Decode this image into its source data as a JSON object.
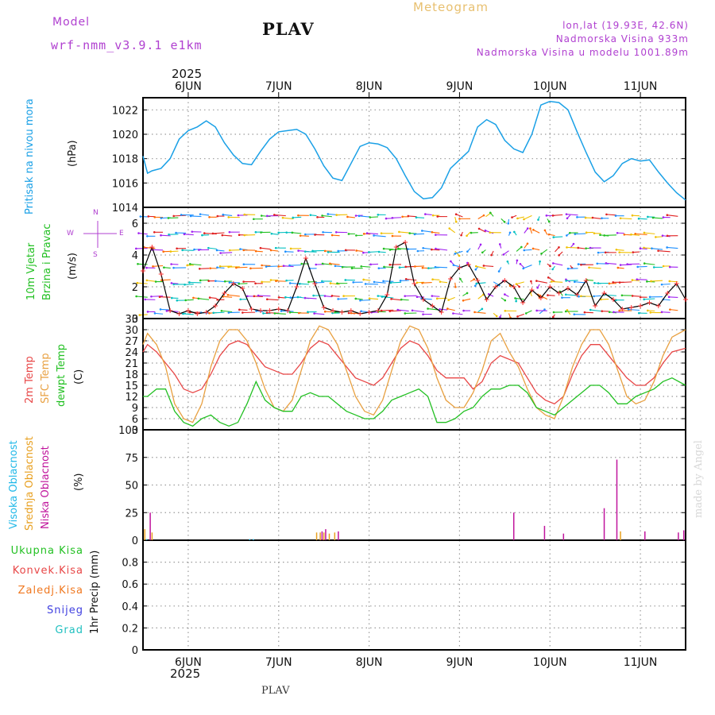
{
  "header": {
    "model_label": "Model",
    "model_name": "wrf-nmm_v3.9.1 e1km",
    "station": "PLAV",
    "product": "Meteogram",
    "lonlat": "lon,lat (19.93E, 42.6N)",
    "elevation": "Nadmorska Visina 933m",
    "model_elevation": "Nadmorska Visina u modelu 1001.89m",
    "year": "2025",
    "footer_station": "PLAV",
    "credit": "made by Angel"
  },
  "colors": {
    "pressure": "#1aa0e6",
    "wind_speed": "#000000",
    "gust_marker": "#ff3030",
    "temp_2m": "#e84646",
    "temp_sfc": "#e8a040",
    "dewpoint": "#22c022",
    "cloud_high": "#20b8e8",
    "cloud_mid": "#e8a020",
    "cloud_low": "#c0149c",
    "label_purple": "#b040d0",
    "label_orange": "#e8c070",
    "label_total": "#22c022",
    "label_conv": "#e84646",
    "label_frz": "#f07820",
    "label_snow": "#4040e0",
    "label_grad": "#20c0c0"
  },
  "chart_data": [
    {
      "type": "line",
      "panel": "pressure",
      "title": "Pritisak na nivou mora",
      "ylabel": "(hPa)",
      "x_unit": "days since 2025-06-05 00 UTC",
      "x_ticks": [
        "6JUN",
        "7JUN",
        "8JUN",
        "9JUN",
        "10JUN",
        "11JUN"
      ],
      "ylim": [
        1014,
        1023
      ],
      "y_ticks": [
        1014,
        1016,
        1018,
        1020,
        1022
      ],
      "grid": true,
      "series": [
        {
          "name": "Pritisak na nivou mora",
          "x": [
            0.5,
            0.55,
            0.6,
            0.7,
            0.8,
            0.9,
            1.0,
            1.1,
            1.2,
            1.3,
            1.4,
            1.5,
            1.6,
            1.7,
            1.8,
            1.9,
            2.0,
            2.1,
            2.2,
            2.3,
            2.4,
            2.5,
            2.6,
            2.7,
            2.8,
            2.9,
            3.0,
            3.1,
            3.2,
            3.3,
            3.4,
            3.5,
            3.6,
            3.7,
            3.8,
            3.9,
            4.0,
            4.1,
            4.2,
            4.3,
            4.4,
            4.5,
            4.6,
            4.7,
            4.8,
            4.9,
            5.0,
            5.1,
            5.2,
            5.3,
            5.4,
            5.5,
            5.6,
            5.7,
            5.8,
            5.9,
            6.0,
            6.1,
            6.2,
            6.3,
            6.4,
            6.5
          ],
          "values": [
            1018.2,
            1016.8,
            1017.0,
            1017.2,
            1018.0,
            1019.6,
            1020.3,
            1020.6,
            1021.1,
            1020.6,
            1019.3,
            1018.3,
            1017.6,
            1017.5,
            1018.6,
            1019.6,
            1020.2,
            1020.3,
            1020.4,
            1020.0,
            1018.8,
            1017.4,
            1016.4,
            1016.2,
            1017.6,
            1019.0,
            1019.3,
            1019.2,
            1018.9,
            1018.0,
            1016.6,
            1015.3,
            1014.7,
            1014.8,
            1015.6,
            1017.2,
            1017.9,
            1018.6,
            1020.6,
            1021.2,
            1020.8,
            1019.5,
            1018.8,
            1018.5,
            1020.0,
            1022.4,
            1022.7,
            1022.6,
            1022.0,
            1020.2,
            1018.5,
            1016.9,
            1016.1,
            1016.6,
            1017.6,
            1018.0,
            1017.8,
            1017.9,
            1016.9,
            1016.0,
            1015.2,
            1014.6
          ]
        }
      ]
    },
    {
      "type": "line",
      "panel": "wind",
      "title": "10m Vjetar Brzina i Pravac",
      "ylabel": "(m/s)",
      "compass": [
        "N",
        "W",
        "E",
        "S"
      ],
      "x_ticks": [
        "6JUN",
        "7JUN",
        "8JUN",
        "9JUN",
        "10JUN",
        "11JUN"
      ],
      "ylim": [
        0,
        7
      ],
      "y_ticks": [
        0,
        2,
        4,
        6
      ],
      "grid": true,
      "series": [
        {
          "name": "wind speed",
          "x": [
            0.5,
            0.6,
            0.7,
            0.8,
            0.9,
            1.0,
            1.1,
            1.2,
            1.3,
            1.4,
            1.5,
            1.6,
            1.7,
            1.8,
            1.9,
            2.0,
            2.1,
            2.2,
            2.3,
            2.4,
            2.5,
            2.6,
            2.7,
            2.8,
            2.9,
            3.0,
            3.1,
            3.2,
            3.3,
            3.4,
            3.5,
            3.6,
            3.7,
            3.8,
            3.9,
            4.0,
            4.1,
            4.2,
            4.3,
            4.4,
            4.5,
            4.6,
            4.7,
            4.8,
            4.9,
            5.0,
            5.1,
            5.2,
            5.3,
            5.4,
            5.5,
            5.6,
            5.7,
            5.8,
            5.9,
            6.0,
            6.1,
            6.2,
            6.3,
            6.4,
            6.5
          ],
          "values": [
            3.0,
            4.5,
            2.8,
            0.5,
            0.3,
            0.5,
            0.3,
            0.4,
            0.8,
            1.6,
            2.2,
            1.9,
            0.6,
            0.5,
            0.5,
            0.6,
            0.5,
            2.0,
            3.8,
            2.2,
            0.7,
            0.5,
            0.4,
            0.5,
            0.3,
            0.4,
            0.5,
            1.5,
            4.5,
            4.8,
            2.2,
            1.2,
            0.8,
            0.4,
            2.5,
            3.2,
            3.4,
            2.4,
            1.2,
            2.0,
            2.4,
            2.0,
            1.0,
            1.8,
            1.3,
            2.0,
            1.6,
            1.9,
            1.5,
            2.4,
            0.8,
            1.6,
            1.2,
            0.6,
            0.7,
            0.8,
            1.0,
            0.8,
            1.6,
            2.2,
            1.2
          ]
        }
      ]
    },
    {
      "type": "line",
      "panel": "temperature",
      "ylabel": "(C)",
      "x_ticks": [
        "6JUN",
        "7JUN",
        "8JUN",
        "9JUN",
        "10JUN",
        "11JUN"
      ],
      "ylim": [
        3,
        33
      ],
      "y_ticks": [
        3,
        6,
        9,
        12,
        15,
        18,
        21,
        24,
        27,
        30,
        33
      ],
      "grid": true,
      "series": [
        {
          "name": "2m Temp",
          "x": [
            0.5,
            0.55,
            0.65,
            0.75,
            0.85,
            0.95,
            1.05,
            1.15,
            1.25,
            1.35,
            1.45,
            1.55,
            1.65,
            1.75,
            1.85,
            1.95,
            2.05,
            2.15,
            2.25,
            2.35,
            2.45,
            2.55,
            2.65,
            2.75,
            2.85,
            2.95,
            3.05,
            3.15,
            3.25,
            3.35,
            3.45,
            3.55,
            3.65,
            3.75,
            3.85,
            3.95,
            4.05,
            4.15,
            4.25,
            4.35,
            4.45,
            4.55,
            4.65,
            4.75,
            4.85,
            4.95,
            5.05,
            5.15,
            5.25,
            5.35,
            5.45,
            5.55,
            5.65,
            5.75,
            5.85,
            5.95,
            6.05,
            6.15,
            6.25,
            6.35,
            6.5
          ],
          "values": [
            24,
            26,
            24,
            21,
            18,
            14,
            13,
            14,
            18,
            23,
            26,
            27,
            26,
            23,
            20,
            19,
            18,
            18,
            21,
            25,
            27,
            26,
            23,
            20,
            17,
            16,
            15,
            17,
            21,
            25,
            27,
            26,
            23,
            19,
            17,
            17,
            17,
            14,
            16,
            21,
            23,
            22,
            21,
            17,
            13,
            11,
            10,
            12,
            18,
            23,
            26,
            26,
            23,
            20,
            17,
            15,
            15,
            17,
            21,
            24,
            25
          ]
        },
        {
          "name": "SFC Temp",
          "x": [
            0.5,
            0.55,
            0.65,
            0.75,
            0.85,
            0.95,
            1.05,
            1.15,
            1.25,
            1.35,
            1.45,
            1.55,
            1.65,
            1.75,
            1.85,
            1.95,
            2.05,
            2.15,
            2.25,
            2.35,
            2.45,
            2.55,
            2.65,
            2.75,
            2.85,
            2.95,
            3.05,
            3.15,
            3.25,
            3.35,
            3.45,
            3.55,
            3.65,
            3.75,
            3.85,
            3.95,
            4.05,
            4.15,
            4.25,
            4.35,
            4.45,
            4.55,
            4.65,
            4.75,
            4.85,
            4.95,
            5.05,
            5.15,
            5.25,
            5.35,
            5.45,
            5.55,
            5.65,
            5.75,
            5.85,
            5.95,
            6.05,
            6.15,
            6.25,
            6.35,
            6.5
          ],
          "values": [
            26,
            29,
            26,
            20,
            10,
            6,
            5,
            10,
            20,
            27,
            30,
            30,
            27,
            21,
            14,
            9,
            8,
            11,
            19,
            27,
            31,
            30,
            26,
            19,
            12,
            8,
            7,
            11,
            19,
            27,
            31,
            30,
            25,
            17,
            11,
            9,
            9,
            13,
            19,
            27,
            29,
            24,
            20,
            14,
            9,
            7,
            6,
            12,
            20,
            26,
            30,
            30,
            26,
            19,
            12,
            10,
            11,
            16,
            23,
            28,
            30
          ]
        },
        {
          "name": "dewpt Temp",
          "x": [
            0.5,
            0.55,
            0.65,
            0.75,
            0.85,
            0.95,
            1.05,
            1.15,
            1.25,
            1.35,
            1.45,
            1.55,
            1.65,
            1.75,
            1.85,
            1.95,
            2.05,
            2.15,
            2.25,
            2.35,
            2.45,
            2.55,
            2.65,
            2.75,
            2.85,
            2.95,
            3.05,
            3.15,
            3.25,
            3.35,
            3.45,
            3.55,
            3.65,
            3.75,
            3.85,
            3.95,
            4.05,
            4.15,
            4.25,
            4.35,
            4.45,
            4.55,
            4.65,
            4.75,
            4.85,
            4.95,
            5.05,
            5.15,
            5.25,
            5.35,
            5.45,
            5.55,
            5.65,
            5.75,
            5.85,
            5.95,
            6.05,
            6.15,
            6.25,
            6.35,
            6.5
          ],
          "values": [
            12,
            12,
            14,
            14,
            8,
            5,
            4,
            6,
            7,
            5,
            4,
            5,
            10,
            16,
            11,
            9,
            8,
            8,
            12,
            13,
            12,
            12,
            10,
            8,
            7,
            6,
            6,
            8,
            11,
            12,
            13,
            14,
            12,
            5,
            5,
            6,
            8,
            9,
            12,
            14,
            14,
            15,
            15,
            13,
            9,
            8,
            7,
            9,
            11,
            13,
            15,
            15,
            13,
            10,
            10,
            12,
            13,
            14,
            16,
            17,
            15
          ]
        }
      ]
    },
    {
      "type": "bar",
      "panel": "cloud",
      "ylabel": "(%)",
      "x_ticks": [
        "6JUN",
        "7JUN",
        "8JUN",
        "9JUN",
        "10JUN",
        "11JUN"
      ],
      "ylim": [
        0,
        100
      ],
      "y_ticks": [
        0,
        25,
        50,
        75,
        100
      ],
      "grid": true,
      "series": [
        {
          "name": "Visoka Oblacnost",
          "x": [
            0.54,
            1.68,
            1.72
          ],
          "values": [
            1,
            1,
            1
          ]
        },
        {
          "name": "Srednja Oblacnost",
          "x": [
            0.52,
            0.6,
            2.42,
            2.46,
            2.5,
            2.56,
            2.62,
            5.78
          ],
          "values": [
            10,
            7,
            7,
            7,
            7,
            6,
            7,
            8
          ]
        },
        {
          "name": "Niska Oblacnost",
          "x": [
            0.58,
            2.48,
            2.52,
            2.66,
            4.6,
            4.94,
            5.15,
            5.6,
            5.74,
            6.05,
            6.42,
            6.48
          ],
          "values": [
            25,
            8,
            10,
            8,
            25,
            13,
            6,
            29,
            73,
            8,
            7,
            9
          ]
        }
      ]
    },
    {
      "type": "bar",
      "panel": "precip",
      "ylabel": "1hr Precip (mm)",
      "x_ticks": [
        "6JUN",
        "7JUN",
        "8JUN",
        "9JUN",
        "10JUN",
        "11JUN"
      ],
      "x_year": "2025",
      "ylim": [
        0,
        1
      ],
      "y_ticks": [
        0,
        0.2,
        0.4,
        0.6,
        0.8
      ],
      "grid": true,
      "series": [
        {
          "name": "Ukupna Kisa",
          "values": []
        },
        {
          "name": "Konvek.Kisa",
          "values": []
        },
        {
          "name": "Zaledj.Kisa",
          "values": []
        },
        {
          "name": "Snijeg",
          "values": []
        },
        {
          "name": "Grad",
          "values": []
        }
      ]
    }
  ]
}
